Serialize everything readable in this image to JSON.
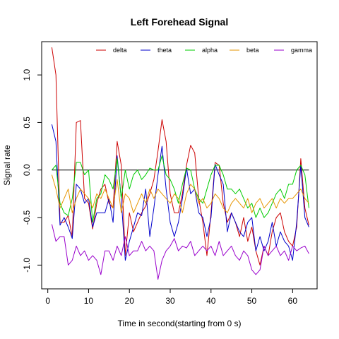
{
  "chart_data": {
    "type": "line",
    "title": "Left Forehead Signal",
    "xlabel": "Time in second(starting from 0 s)",
    "ylabel": "Signal rate",
    "xlim": [
      -1.5,
      66
    ],
    "ylim": [
      -1.25,
      1.35
    ],
    "xticks": [
      0,
      10,
      20,
      30,
      40,
      50,
      60
    ],
    "yticks": [
      -1.0,
      -0.5,
      0.0,
      0.5,
      1.0
    ],
    "ytick_labels": [
      "-1.0",
      "-0.5",
      "0.0",
      "0.5",
      "1.0"
    ],
    "legend_position": "top",
    "reference_line": {
      "y": 0,
      "x_from": 1,
      "x_to": 64,
      "color": "#000000"
    },
    "x": [
      1,
      2,
      3,
      4,
      5,
      6,
      7,
      8,
      9,
      10,
      11,
      12,
      13,
      14,
      15,
      16,
      17,
      18,
      19,
      20,
      21,
      22,
      23,
      24,
      25,
      26,
      27,
      28,
      29,
      30,
      31,
      32,
      33,
      34,
      35,
      36,
      37,
      38,
      39,
      40,
      41,
      42,
      43,
      44,
      45,
      46,
      47,
      48,
      49,
      50,
      51,
      52,
      53,
      54,
      55,
      56,
      57,
      58,
      59,
      60,
      61,
      62,
      63,
      64
    ],
    "series": [
      {
        "name": "delta",
        "color": "#cc0000",
        "values": [
          1.29,
          1.0,
          -0.55,
          -0.55,
          -0.48,
          -0.7,
          0.5,
          0.52,
          -0.3,
          -0.35,
          -0.62,
          -0.35,
          -0.2,
          -0.15,
          -0.35,
          -0.4,
          0.3,
          0.05,
          -0.9,
          -0.45,
          -0.65,
          -0.55,
          -0.45,
          -0.38,
          -0.25,
          -0.1,
          0.2,
          0.53,
          0.3,
          -0.25,
          -0.45,
          -0.45,
          -0.25,
          0.05,
          0.26,
          0.18,
          -0.3,
          -0.55,
          -0.9,
          -0.45,
          0.08,
          0.05,
          -0.35,
          -0.55,
          -0.45,
          -0.55,
          -0.7,
          -0.5,
          -0.75,
          -0.6,
          -0.85,
          -1.0,
          -0.8,
          -0.9,
          -0.65,
          -0.5,
          -0.45,
          -0.65,
          -0.75,
          -0.8,
          -0.6,
          0.12,
          -0.4,
          -0.58
        ]
      },
      {
        "name": "theta",
        "color": "#0000cc",
        "values": [
          0.48,
          0.3,
          -0.58,
          -0.5,
          -0.6,
          -0.72,
          -0.15,
          -0.2,
          -0.35,
          -0.3,
          -0.6,
          -0.45,
          -0.45,
          -0.45,
          -0.3,
          -0.55,
          0.15,
          -0.3,
          -0.95,
          -0.75,
          -0.6,
          -0.45,
          -0.48,
          -0.2,
          -0.7,
          -0.4,
          -0.05,
          0.25,
          -0.2,
          -0.55,
          -0.7,
          -0.55,
          -0.3,
          0.02,
          -0.25,
          -0.2,
          -0.45,
          -0.5,
          -0.7,
          -0.5,
          0.06,
          -0.05,
          -0.15,
          -0.65,
          -0.45,
          -0.55,
          -0.65,
          -0.7,
          -0.55,
          -0.5,
          -0.85,
          -0.7,
          -0.85,
          -0.75,
          -0.55,
          -0.8,
          -0.65,
          -0.75,
          -0.8,
          -0.95,
          -0.55,
          0.05,
          -0.5,
          -0.6
        ]
      },
      {
        "name": "alpha",
        "color": "#00cc00",
        "values": [
          0.0,
          0.05,
          -0.35,
          -0.45,
          -0.48,
          -0.3,
          0.08,
          0.08,
          -0.05,
          0.0,
          -0.55,
          -0.3,
          -0.25,
          -0.05,
          -0.1,
          -0.2,
          0.12,
          -0.3,
          0.0,
          -0.2,
          -0.05,
          0.0,
          -0.1,
          -0.05,
          0.02,
          0.0,
          0.0,
          0.15,
          -0.05,
          -0.1,
          -0.2,
          -0.35,
          -0.15,
          0.02,
          0.0,
          -0.2,
          -0.3,
          -0.35,
          -0.2,
          -0.05,
          0.05,
          0.05,
          -0.05,
          -0.2,
          -0.2,
          -0.25,
          -0.2,
          -0.3,
          -0.4,
          -0.35,
          -0.5,
          -0.4,
          -0.5,
          -0.45,
          -0.35,
          -0.25,
          -0.2,
          -0.3,
          -0.15,
          -0.15,
          0.0,
          0.05,
          -0.05,
          -0.4
        ]
      },
      {
        "name": "beta",
        "color": "#e69500",
        "values": [
          -0.05,
          -0.2,
          -0.4,
          -0.3,
          -0.2,
          -0.45,
          -0.3,
          -0.2,
          -0.25,
          -0.3,
          -0.4,
          -0.25,
          -0.3,
          -0.2,
          -0.3,
          -0.4,
          -0.1,
          -0.45,
          -0.25,
          -0.3,
          -0.45,
          -0.35,
          -0.25,
          -0.35,
          -0.2,
          -0.3,
          -0.2,
          -0.25,
          -0.3,
          -0.35,
          -0.25,
          -0.3,
          -0.45,
          -0.25,
          -0.15,
          -0.2,
          -0.35,
          -0.3,
          -0.4,
          -0.35,
          -0.25,
          -0.3,
          -0.4,
          -0.45,
          -0.35,
          -0.3,
          -0.35,
          -0.4,
          -0.3,
          -0.45,
          -0.35,
          -0.3,
          -0.4,
          -0.35,
          -0.3,
          -0.4,
          -0.3,
          -0.35,
          -0.3,
          -0.3,
          -0.25,
          -0.2,
          -0.3,
          -0.35
        ]
      },
      {
        "name": "gamma",
        "color": "#9900cc",
        "values": [
          -0.57,
          -0.75,
          -0.7,
          -0.7,
          -1.0,
          -0.95,
          -0.8,
          -0.9,
          -0.85,
          -0.95,
          -0.9,
          -0.95,
          -1.1,
          -0.85,
          -0.85,
          -0.95,
          -0.8,
          -0.9,
          -0.7,
          -0.9,
          -0.85,
          -0.85,
          -0.75,
          -0.85,
          -0.8,
          -0.85,
          -1.15,
          -0.95,
          -0.85,
          -0.8,
          -0.72,
          -0.85,
          -0.8,
          -0.82,
          -0.75,
          -0.9,
          -0.85,
          -0.8,
          -0.85,
          -0.8,
          -0.9,
          -0.75,
          -0.9,
          -0.85,
          -0.8,
          -0.9,
          -0.95,
          -0.85,
          -0.9,
          -1.05,
          -1.1,
          -1.05,
          -0.8,
          -0.9,
          -0.85,
          -0.8,
          -0.9,
          -0.85,
          -0.95,
          -0.8,
          -0.85,
          -0.82,
          -0.8,
          -0.88
        ]
      }
    ]
  }
}
